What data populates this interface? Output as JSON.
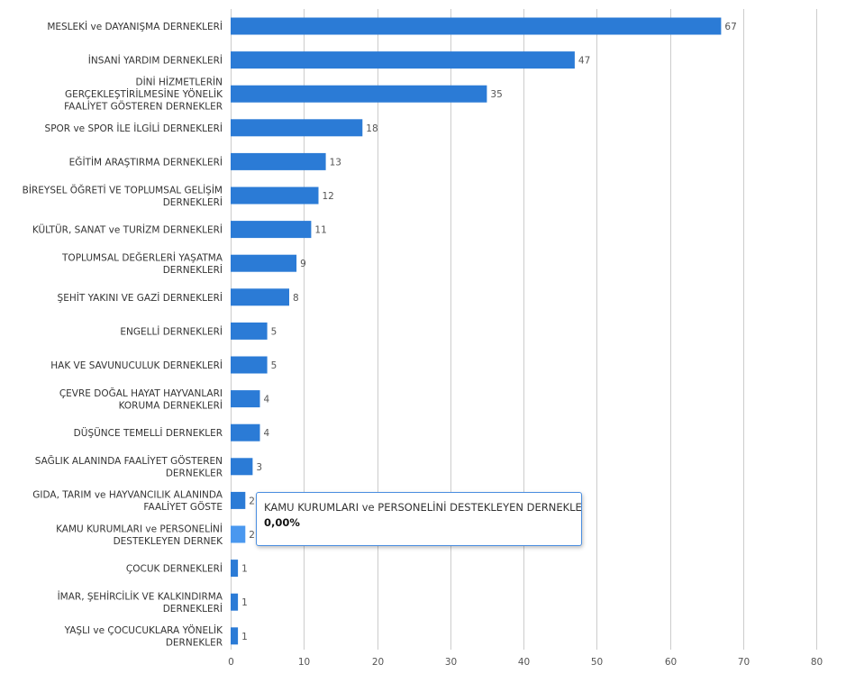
{
  "chart_data": {
    "type": "bar",
    "orientation": "horizontal",
    "categories": [
      [
        "MESLEKİ ve DAYANIŞMA DERNEKLERİ"
      ],
      [
        "İNSANİ YARDIM DERNEKLERİ"
      ],
      [
        "DİNİ HİZMETLERİN",
        "GERÇEKLEŞTİRİLMESİNE YÖNELİK",
        "FAALİYET GÖSTEREN DERNEKLER"
      ],
      [
        "SPOR ve SPOR İLE İLGİLİ DERNEKLERİ"
      ],
      [
        "EĞİTİM ARAŞTIRMA DERNEKLERİ"
      ],
      [
        "BİREYSEL ÖĞRETİ VE TOPLUMSAL GELİŞİM",
        "DERNEKLERİ"
      ],
      [
        "KÜLTÜR, SANAT ve TURİZM DERNEKLERİ"
      ],
      [
        "TOPLUMSAL DEĞERLERİ YAŞATMA",
        "DERNEKLERİ"
      ],
      [
        "ŞEHİT YAKINI VE GAZİ DERNEKLERİ"
      ],
      [
        "ENGELLİ DERNEKLERİ"
      ],
      [
        "HAK VE SAVUNUCULUK DERNEKLERİ"
      ],
      [
        "ÇEVRE DOĞAL HAYAT HAYVANLARI",
        "KORUMA DERNEKLERİ"
      ],
      [
        "DÜŞÜNCE TEMELLİ DERNEKLER"
      ],
      [
        "SAĞLIK ALANINDA FAALİYET GÖSTEREN",
        "DERNEKLER"
      ],
      [
        "GIDA, TARIM ve HAYVANCILIK ALANINDA",
        "FAALİYET GÖSTE"
      ],
      [
        "KAMU KURUMLARI ve PERSONELİNİ",
        "DESTEKLEYEN DERNEK"
      ],
      [
        "ÇOCUK DERNEKLERİ"
      ],
      [
        "İMAR, ŞEHİRCİLİK VE KALKINDIRMA",
        "DERNEKLERİ"
      ],
      [
        "YAŞLI ve ÇOCUCUKLARA YÖNELİK",
        "DERNEKLER"
      ]
    ],
    "values": [
      67,
      47,
      35,
      18,
      13,
      12,
      11,
      9,
      8,
      5,
      5,
      4,
      4,
      3,
      2,
      2,
      1,
      1,
      1
    ],
    "xlim": [
      0,
      80
    ],
    "xticks": [
      0,
      10,
      20,
      30,
      40,
      50,
      60,
      70,
      80
    ],
    "grid": true,
    "highlighted_index": 15,
    "colors": {
      "bar": "#2b7bd6",
      "bar_highlight": "#4a98ef",
      "grid": "#cccccc",
      "tooltip_border": "#4a8ee0"
    }
  },
  "tooltip": {
    "title": "KAMU KURUMLARI ve PERSONELİNİ DESTEKLEYEN DERNEKLE",
    "value": "0,00%"
  }
}
